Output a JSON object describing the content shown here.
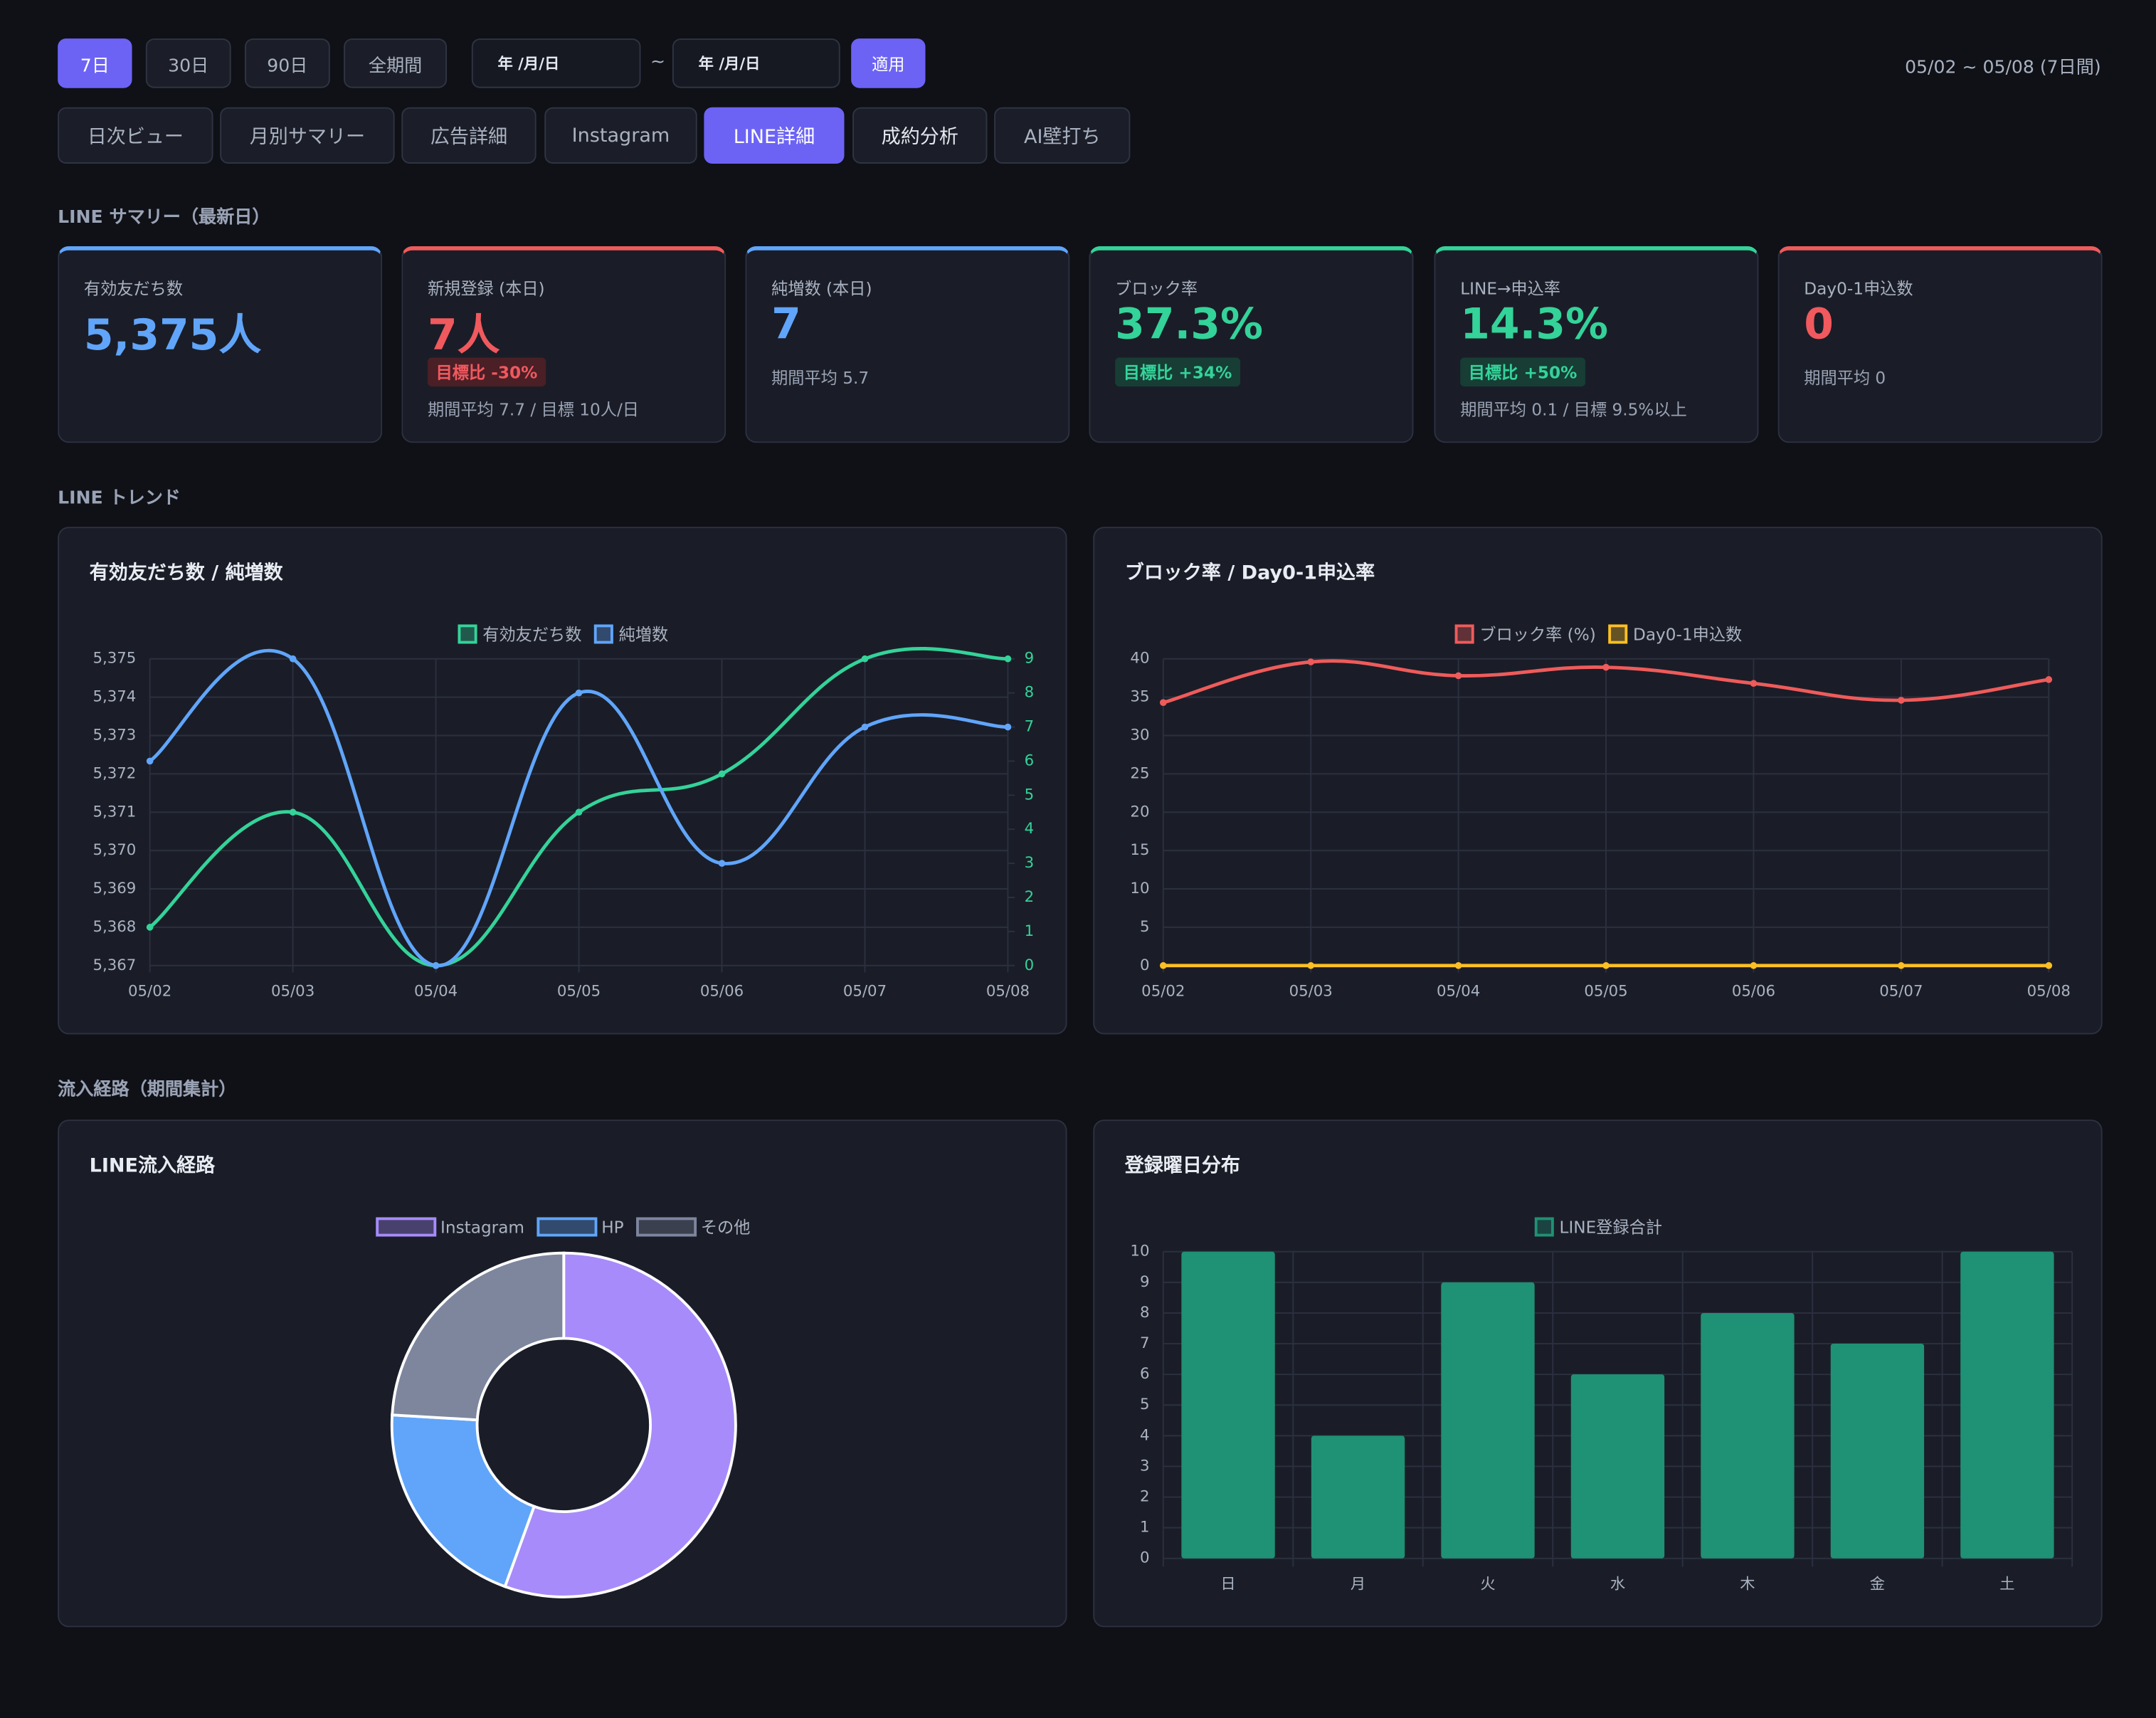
{
  "filters": {
    "ranges": [
      "7日",
      "30日",
      "90日",
      "全期間"
    ],
    "date_from": "年 /月/日",
    "separator": "~",
    "date_to": "年 /月/日",
    "apply": "適用",
    "period": "05/02 ~ 05/08 (7日間)"
  },
  "tabs": [
    "日次ビュー",
    "月別サマリー",
    "広告詳細",
    "Instagram",
    "LINE詳細",
    "成約分析",
    "AI壁打ち"
  ],
  "summary": {
    "title": "LINE サマリー（最新日）",
    "cards": [
      {
        "label": "有効友だち数",
        "value": "5,375人"
      },
      {
        "label": "新規登録 (本日)",
        "value": "7人",
        "badge": "目標比 -30%",
        "sub": "期間平均 7.7 / 目標 10人/日"
      },
      {
        "label": "純増数 (本日)",
        "value": "7",
        "sub": "期間平均 5.7"
      },
      {
        "label": "ブロック率",
        "value": "37.3%",
        "badge": "目標比 +34%"
      },
      {
        "label": "LINE→申込率",
        "value": "14.3%",
        "badge": "目標比 +50%",
        "sub": "期間平均 0.1 / 目標 9.5%以上"
      },
      {
        "label": "Day0-1申込数",
        "value": "0",
        "sub": "期間平均 0"
      }
    ]
  },
  "trend_title": "LINE トレンド",
  "sources_title": "流入経路（期間集計）",
  "chart_data": [
    {
      "type": "line",
      "title": "有効友だち数 / 純増数",
      "x": [
        "05/02",
        "05/03",
        "05/04",
        "05/05",
        "05/06",
        "05/07",
        "05/08"
      ],
      "series": [
        {
          "name": "有効友だち数",
          "color": "#34d399",
          "values": [
            5368,
            5371,
            5367,
            5371,
            5372,
            5375,
            5375
          ]
        },
        {
          "name": "純増数",
          "color": "#60a5fa",
          "axis": "y2",
          "values": [
            6,
            9,
            0,
            8,
            3,
            7,
            7
          ]
        }
      ],
      "ylim": [
        5367,
        5375
      ],
      "yticks": [
        {
          "value": 5367,
          "label": "5,367"
        },
        {
          "value": 5368,
          "label": "5,368"
        },
        {
          "value": 5369,
          "label": "5,369"
        },
        {
          "value": 5370,
          "label": "5,370"
        },
        {
          "value": 5371,
          "label": "5,371"
        },
        {
          "value": 5372,
          "label": "5,372"
        },
        {
          "value": 5373,
          "label": "5,373"
        },
        {
          "value": 5374,
          "label": "5,374"
        },
        {
          "value": 5375,
          "label": "5,375"
        }
      ],
      "y2lim": [
        0,
        9
      ],
      "y2ticks": [
        0,
        1,
        2,
        3,
        4,
        5,
        6,
        7,
        8,
        9
      ],
      "grid": true
    },
    {
      "type": "line",
      "title": "ブロック率 / Day0-1申込率",
      "x": [
        "05/02",
        "05/03",
        "05/04",
        "05/05",
        "05/06",
        "05/07",
        "05/08"
      ],
      "series": [
        {
          "name": "ブロック率 (%)",
          "color": "#ef5b5b",
          "values": [
            34.3,
            39.6,
            37.8,
            38.9,
            36.8,
            34.6,
            37.3
          ]
        },
        {
          "name": "Day0-1申込数",
          "color": "#fbbf24",
          "values": [
            0,
            0,
            0,
            0,
            0,
            0,
            0
          ]
        }
      ],
      "ylim": [
        0,
        40
      ],
      "yticks": [
        0,
        5,
        10,
        15,
        20,
        25,
        30,
        35,
        40
      ],
      "grid": true
    },
    {
      "type": "doughnut",
      "title": "LINE流入経路",
      "categories": [
        "Instagram",
        "HP",
        "その他"
      ],
      "values": [
        30,
        11,
        13
      ],
      "colors": [
        "#a78bfa",
        "#60a5fa",
        "#7e869e"
      ]
    },
    {
      "type": "bar",
      "title": "登録曜日分布",
      "categories": [
        "日",
        "月",
        "火",
        "水",
        "木",
        "金",
        "土"
      ],
      "series": [
        {
          "name": "LINE登録合計",
          "color": "#1f9174",
          "values": [
            10,
            4,
            9,
            6,
            8,
            7,
            10
          ]
        }
      ],
      "ylim": [
        0,
        10
      ],
      "yticks": [
        0,
        1,
        2,
        3,
        4,
        5,
        6,
        7,
        8,
        9,
        10
      ],
      "grid": true
    }
  ]
}
